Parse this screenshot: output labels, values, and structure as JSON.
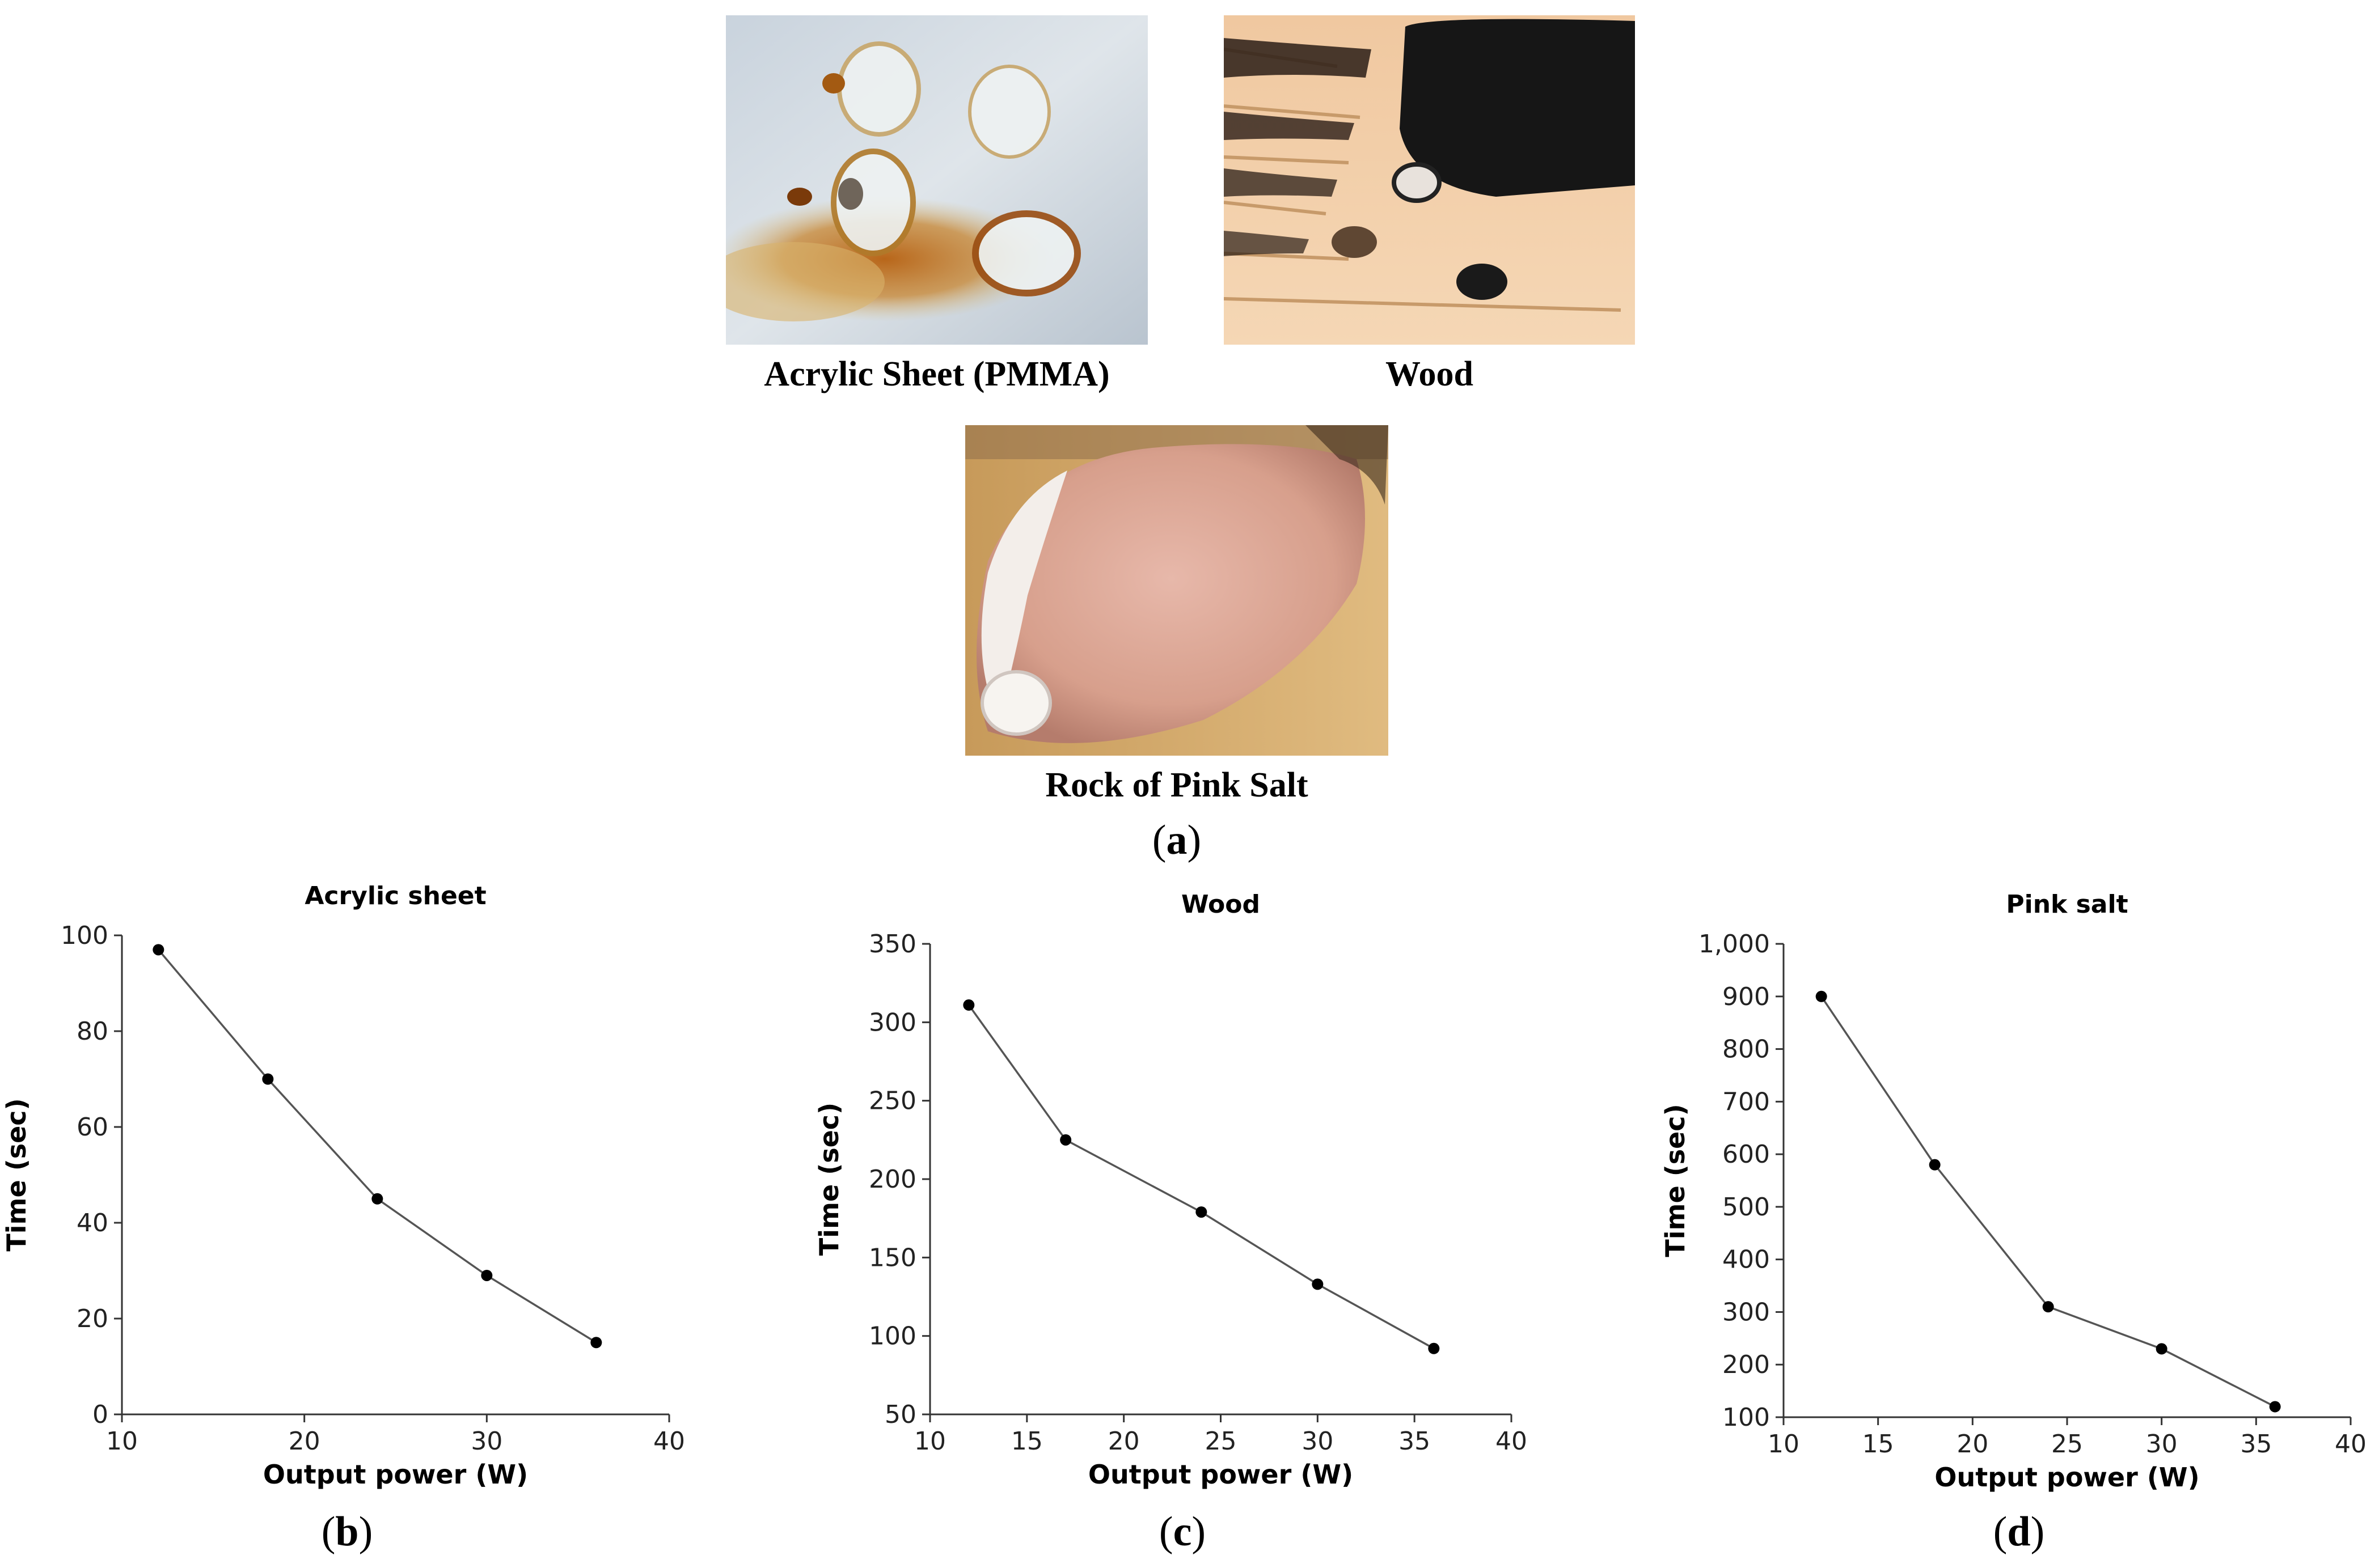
{
  "figure": {
    "photos": [
      {
        "id": "acrylic",
        "caption": "Acrylic Sheet (PMMA)"
      },
      {
        "id": "wood",
        "caption": "Wood"
      },
      {
        "id": "salt",
        "caption": "Rock of Pink Salt"
      }
    ],
    "panel_labels": {
      "a": "a",
      "b": "b",
      "c": "c",
      "d": "d"
    }
  },
  "colors": {
    "line": "#555555",
    "marker": "#000000",
    "axis": "#333333",
    "grid": "#eeeeee"
  },
  "chart_data": [
    {
      "type": "line",
      "title": "Acrylic sheet",
      "xlabel": "Output power (W)",
      "ylabel": "Time (sec)",
      "xlim": [
        10,
        40
      ],
      "ylim": [
        0,
        100
      ],
      "xticks": [
        10,
        20,
        30,
        40
      ],
      "yticks": [
        0,
        20,
        40,
        60,
        80,
        100
      ],
      "ytick_labels": [
        "0",
        "20",
        "40",
        "60",
        "80",
        "100"
      ],
      "x": [
        12,
        18,
        24,
        30,
        36
      ],
      "y": [
        97,
        70,
        45,
        29,
        15
      ]
    },
    {
      "type": "line",
      "title": "Wood",
      "xlabel": "Output power (W)",
      "ylabel": "Time (sec)",
      "xlim": [
        10,
        40
      ],
      "ylim": [
        50,
        350
      ],
      "xticks": [
        10,
        15,
        20,
        25,
        30,
        35,
        40
      ],
      "yticks": [
        50,
        100,
        150,
        200,
        250,
        300,
        350
      ],
      "ytick_labels": [
        "50",
        "100",
        "150",
        "200",
        "250",
        "300",
        "350"
      ],
      "x": [
        12,
        17,
        24,
        30,
        36
      ],
      "y": [
        311,
        225,
        179,
        133,
        92
      ]
    },
    {
      "type": "line",
      "title": "Pink salt",
      "xlabel": "Output power (W)",
      "ylabel": "Time (sec)",
      "xlim": [
        10,
        40
      ],
      "ylim": [
        100,
        1000
      ],
      "xticks": [
        10,
        15,
        20,
        25,
        30,
        35,
        40
      ],
      "yticks": [
        100,
        200,
        300,
        400,
        500,
        600,
        700,
        800,
        900,
        1000
      ],
      "ytick_labels": [
        "100",
        "200",
        "300",
        "400",
        "500",
        "600",
        "700",
        "800",
        "900",
        "1,000"
      ],
      "x": [
        12,
        18,
        24,
        30,
        36
      ],
      "y": [
        900,
        580,
        310,
        230,
        120
      ]
    }
  ]
}
